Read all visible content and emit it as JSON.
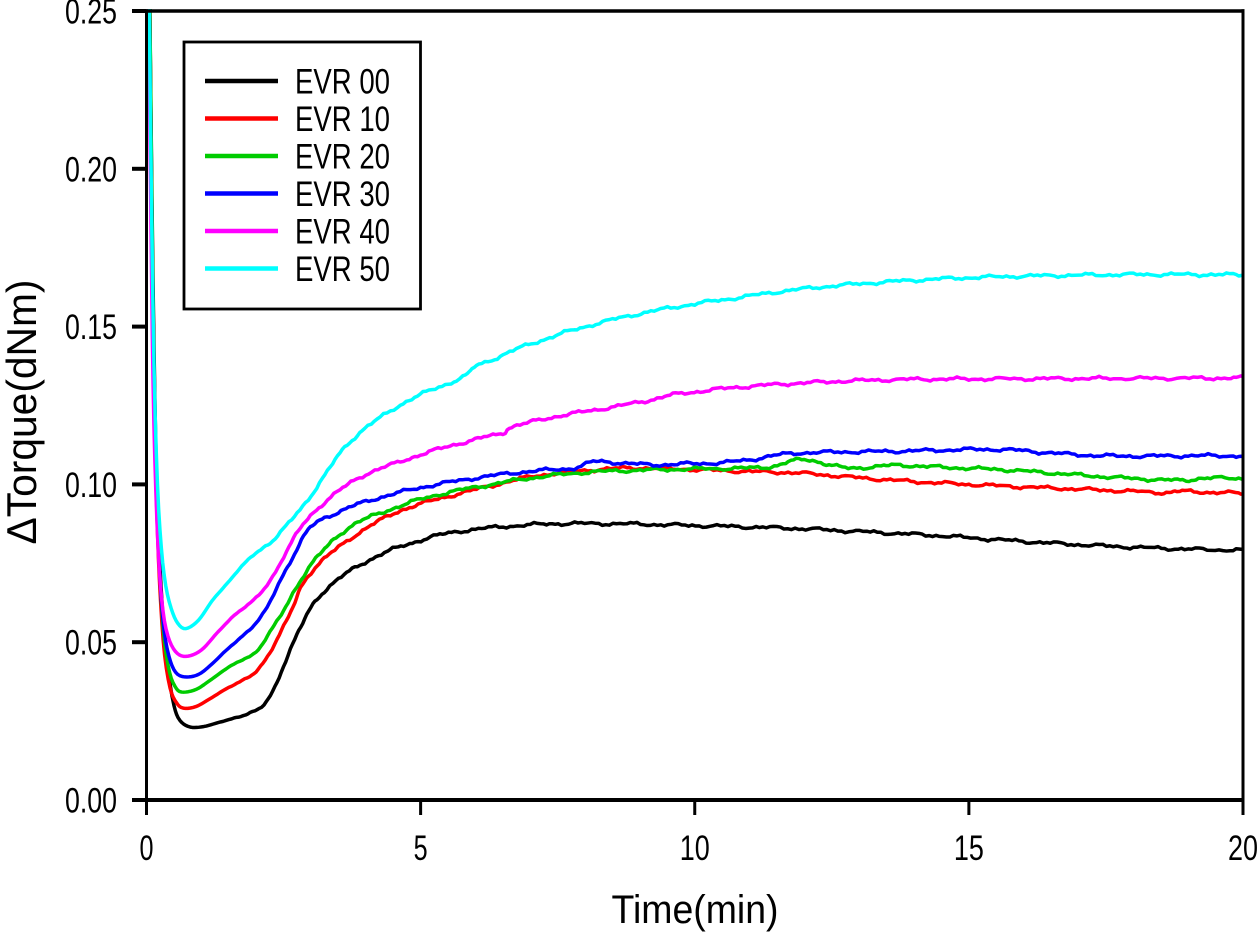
{
  "figure": {
    "background": "#ffffff",
    "frame_color": "#000000"
  },
  "chart_data": {
    "type": "line",
    "title": "",
    "xlabel": "Time(min)",
    "ylabel": "ΔTorque(dNm)",
    "xlim": [
      0,
      20
    ],
    "ylim": [
      0,
      0.25
    ],
    "xticks": [
      0,
      5,
      10,
      15,
      20
    ],
    "xtick_labels": [
      "0",
      "5",
      "10",
      "15",
      "20"
    ],
    "yticks": [
      0,
      0.05,
      0.1,
      0.15,
      0.2,
      0.25
    ],
    "ytick_labels": [
      "0.00",
      "0.05",
      "0.10",
      "0.15",
      "0.20",
      "0.25"
    ],
    "grid": false,
    "legend_position": "top-left-inside",
    "series": [
      {
        "name": "EVR 00",
        "color": "#000000",
        "points": [
          [
            0.06,
            0.252
          ],
          [
            0.1,
            0.19
          ],
          [
            0.14,
            0.14
          ],
          [
            0.18,
            0.105
          ],
          [
            0.24,
            0.076
          ],
          [
            0.31,
            0.056
          ],
          [
            0.4,
            0.0405
          ],
          [
            0.5,
            0.03
          ],
          [
            0.61,
            0.0252
          ],
          [
            0.8,
            0.0231
          ],
          [
            1.05,
            0.0233
          ],
          [
            1.3,
            0.0245
          ],
          [
            1.6,
            0.026
          ],
          [
            1.85,
            0.0272
          ],
          [
            2.1,
            0.0295
          ],
          [
            2.3,
            0.0345
          ],
          [
            2.5,
            0.0425
          ],
          [
            2.7,
            0.0505
          ],
          [
            2.85,
            0.056
          ],
          [
            3.0,
            0.061
          ],
          [
            3.2,
            0.0655
          ],
          [
            3.5,
            0.07
          ],
          [
            3.8,
            0.0735
          ],
          [
            4.08,
            0.0762
          ],
          [
            4.4,
            0.0788
          ],
          [
            4.8,
            0.0812
          ],
          [
            5.3,
            0.0838
          ],
          [
            6.0,
            0.0858
          ],
          [
            7.0,
            0.0872
          ],
          [
            7.7,
            0.0876
          ],
          [
            8.7,
            0.0875
          ],
          [
            9.7,
            0.0871
          ],
          [
            10.8,
            0.0866
          ],
          [
            11.9,
            0.086
          ],
          [
            13.2,
            0.0849
          ],
          [
            14.4,
            0.0838
          ],
          [
            15.6,
            0.0824
          ],
          [
            16.8,
            0.0811
          ],
          [
            18.0,
            0.0801
          ],
          [
            19.0,
            0.0795
          ],
          [
            20,
            0.0791
          ]
        ]
      },
      {
        "name": "EVR 10",
        "color": "#ff0000",
        "points": [
          [
            0.06,
            0.252
          ],
          [
            0.1,
            0.18
          ],
          [
            0.14,
            0.125
          ],
          [
            0.2,
            0.085
          ],
          [
            0.26,
            0.062
          ],
          [
            0.33,
            0.046
          ],
          [
            0.43,
            0.0355
          ],
          [
            0.54,
            0.031
          ],
          [
            0.67,
            0.0291
          ],
          [
            0.9,
            0.0296
          ],
          [
            1.15,
            0.032
          ],
          [
            1.45,
            0.0352
          ],
          [
            1.75,
            0.0378
          ],
          [
            2.0,
            0.0408
          ],
          [
            2.25,
            0.0468
          ],
          [
            2.5,
            0.0548
          ],
          [
            2.67,
            0.061
          ],
          [
            2.81,
            0.0672
          ],
          [
            3.0,
            0.0722
          ],
          [
            3.2,
            0.0758
          ],
          [
            3.5,
            0.08
          ],
          [
            3.99,
            0.086
          ],
          [
            4.4,
            0.0898
          ],
          [
            4.8,
            0.0928
          ],
          [
            5.5,
            0.0962
          ],
          [
            6.2,
            0.0992
          ],
          [
            7.0,
            0.1024
          ],
          [
            7.8,
            0.1041
          ],
          [
            8.5,
            0.105
          ],
          [
            9.0,
            0.1052
          ],
          [
            9.8,
            0.1048
          ],
          [
            10.8,
            0.1042
          ],
          [
            11.9,
            0.1036
          ],
          [
            13.0,
            0.1021
          ],
          [
            14.0,
            0.1009
          ],
          [
            15.0,
            0.1
          ],
          [
            16.0,
            0.0992
          ],
          [
            17.0,
            0.0985
          ],
          [
            18.0,
            0.0978
          ],
          [
            18.6,
            0.0974
          ],
          [
            18.85,
            0.0978
          ],
          [
            19.4,
            0.0975
          ],
          [
            20,
            0.0972
          ]
        ]
      },
      {
        "name": "EVR 20",
        "color": "#00cc00",
        "points": [
          [
            0.06,
            0.252
          ],
          [
            0.1,
            0.185
          ],
          [
            0.14,
            0.13
          ],
          [
            0.2,
            0.09
          ],
          [
            0.26,
            0.066
          ],
          [
            0.33,
            0.05
          ],
          [
            0.42,
            0.0405
          ],
          [
            0.52,
            0.036
          ],
          [
            0.64,
            0.0342
          ],
          [
            0.9,
            0.035
          ],
          [
            1.15,
            0.0378
          ],
          [
            1.45,
            0.0415
          ],
          [
            1.75,
            0.0445
          ],
          [
            2.0,
            0.047
          ],
          [
            2.25,
            0.053
          ],
          [
            2.5,
            0.06
          ],
          [
            2.75,
            0.068
          ],
          [
            3.0,
            0.0745
          ],
          [
            3.25,
            0.0795
          ],
          [
            3.5,
            0.0838
          ],
          [
            3.8,
            0.0875
          ],
          [
            4.1,
            0.0898
          ],
          [
            4.5,
            0.0924
          ],
          [
            5.0,
            0.0953
          ],
          [
            5.6,
            0.0978
          ],
          [
            6.3,
            0.1
          ],
          [
            7.0,
            0.102
          ],
          [
            8.0,
            0.1038
          ],
          [
            9.0,
            0.1045
          ],
          [
            10.0,
            0.1049
          ],
          [
            11.0,
            0.1052
          ],
          [
            11.45,
            0.1058
          ],
          [
            11.8,
            0.1075
          ],
          [
            12.1,
            0.1078
          ],
          [
            12.45,
            0.1062
          ],
          [
            12.8,
            0.1052
          ],
          [
            13.3,
            0.1056
          ],
          [
            13.7,
            0.1061
          ],
          [
            14.3,
            0.1056
          ],
          [
            15.0,
            0.1051
          ],
          [
            15.6,
            0.1047
          ],
          [
            16.5,
            0.1036
          ],
          [
            17.4,
            0.1025
          ],
          [
            18.2,
            0.1017
          ],
          [
            18.9,
            0.1013
          ],
          [
            19.3,
            0.102
          ],
          [
            20,
            0.1019
          ]
        ]
      },
      {
        "name": "EVR 30",
        "color": "#0000ff",
        "points": [
          [
            0.05,
            0.252
          ],
          [
            0.09,
            0.185
          ],
          [
            0.13,
            0.132
          ],
          [
            0.19,
            0.093
          ],
          [
            0.25,
            0.069
          ],
          [
            0.32,
            0.054
          ],
          [
            0.41,
            0.0455
          ],
          [
            0.53,
            0.0405
          ],
          [
            0.7,
            0.039
          ],
          [
            0.95,
            0.0398
          ],
          [
            1.2,
            0.0432
          ],
          [
            1.5,
            0.0482
          ],
          [
            1.75,
            0.052
          ],
          [
            2.0,
            0.056
          ],
          [
            2.2,
            0.061
          ],
          [
            2.45,
            0.07
          ],
          [
            2.7,
            0.078
          ],
          [
            2.95,
            0.0855
          ],
          [
            3.2,
            0.089
          ],
          [
            3.5,
            0.0912
          ],
          [
            3.9,
            0.094
          ],
          [
            4.4,
            0.0965
          ],
          [
            5.0,
            0.099
          ],
          [
            5.7,
            0.1012
          ],
          [
            6.4,
            0.103
          ],
          [
            7.1,
            0.1043
          ],
          [
            7.8,
            0.1052
          ],
          [
            8.15,
            0.1072
          ],
          [
            8.5,
            0.107
          ],
          [
            8.8,
            0.1066
          ],
          [
            9.3,
            0.1062
          ],
          [
            9.8,
            0.1065
          ],
          [
            10.4,
            0.1068
          ],
          [
            11.0,
            0.1078
          ],
          [
            11.5,
            0.1093
          ],
          [
            12.0,
            0.11
          ],
          [
            12.8,
            0.1103
          ],
          [
            13.6,
            0.1105
          ],
          [
            14.4,
            0.1108
          ],
          [
            15.2,
            0.1111
          ],
          [
            15.8,
            0.1109
          ],
          [
            16.4,
            0.1101
          ],
          [
            17.1,
            0.1093
          ],
          [
            17.7,
            0.109
          ],
          [
            18.5,
            0.109
          ],
          [
            19.3,
            0.1091
          ],
          [
            20,
            0.109
          ]
        ]
      },
      {
        "name": "EVR 40",
        "color": "#ff00ff",
        "points": [
          [
            0.04,
            0.252
          ],
          [
            0.08,
            0.185
          ],
          [
            0.12,
            0.132
          ],
          [
            0.17,
            0.098
          ],
          [
            0.23,
            0.074
          ],
          [
            0.3,
            0.06
          ],
          [
            0.39,
            0.052
          ],
          [
            0.53,
            0.047
          ],
          [
            0.72,
            0.0455
          ],
          [
            1.0,
            0.0475
          ],
          [
            1.3,
            0.0532
          ],
          [
            1.6,
            0.0585
          ],
          [
            1.95,
            0.0632
          ],
          [
            2.25,
            0.0695
          ],
          [
            2.55,
            0.0785
          ],
          [
            2.81,
            0.0862
          ],
          [
            3.1,
            0.092
          ],
          [
            3.53,
            0.0982
          ],
          [
            4.0,
            0.1032
          ],
          [
            4.63,
            0.1072
          ],
          [
            5.1,
            0.11
          ],
          [
            5.65,
            0.1127
          ],
          [
            6.1,
            0.1147
          ],
          [
            6.5,
            0.1163
          ],
          [
            6.62,
            0.118
          ],
          [
            7.0,
            0.1197
          ],
          [
            7.5,
            0.1216
          ],
          [
            8.0,
            0.1231
          ],
          [
            8.6,
            0.1248
          ],
          [
            9.2,
            0.1268
          ],
          [
            9.6,
            0.1284
          ],
          [
            10.1,
            0.1295
          ],
          [
            10.6,
            0.1305
          ],
          [
            11.1,
            0.1312
          ],
          [
            11.7,
            0.1319
          ],
          [
            12.3,
            0.1324
          ],
          [
            13.0,
            0.1329
          ],
          [
            14.0,
            0.1333
          ],
          [
            15.0,
            0.1334
          ],
          [
            16.5,
            0.1335
          ],
          [
            18.0,
            0.1336
          ],
          [
            20,
            0.1337
          ]
        ]
      },
      {
        "name": "EVR 50",
        "color": "#00ffff",
        "points": [
          [
            0.05,
            0.252
          ],
          [
            0.09,
            0.19
          ],
          [
            0.14,
            0.135
          ],
          [
            0.2,
            0.1
          ],
          [
            0.27,
            0.08
          ],
          [
            0.35,
            0.068
          ],
          [
            0.45,
            0.0607
          ],
          [
            0.57,
            0.056
          ],
          [
            0.72,
            0.0543
          ],
          [
            0.95,
            0.057
          ],
          [
            1.2,
            0.0632
          ],
          [
            1.4,
            0.0672
          ],
          [
            1.65,
            0.0722
          ],
          [
            1.9,
            0.077
          ],
          [
            2.13,
            0.08
          ],
          [
            2.35,
            0.0828
          ],
          [
            2.65,
            0.089
          ],
          [
            3.0,
            0.0965
          ],
          [
            3.3,
            0.104
          ],
          [
            3.53,
            0.11
          ],
          [
            3.8,
            0.115
          ],
          [
            4.1,
            0.1192
          ],
          [
            4.63,
            0.1252
          ],
          [
            5.1,
            0.1292
          ],
          [
            5.65,
            0.133
          ],
          [
            5.88,
            0.1352
          ],
          [
            5.98,
            0.1372
          ],
          [
            6.3,
            0.1395
          ],
          [
            6.8,
            0.1432
          ],
          [
            7.3,
            0.1462
          ],
          [
            7.8,
            0.149
          ],
          [
            8.5,
            0.1522
          ],
          [
            9.2,
            0.1548
          ],
          [
            10.0,
            0.1572
          ],
          [
            10.8,
            0.1592
          ],
          [
            11.6,
            0.1612
          ],
          [
            12.4,
            0.1627
          ],
          [
            13.2,
            0.1638
          ],
          [
            14.1,
            0.1648
          ],
          [
            15.0,
            0.1655
          ],
          [
            16.0,
            0.166
          ],
          [
            17.0,
            0.1663
          ],
          [
            18.0,
            0.1665
          ],
          [
            19.0,
            0.1665
          ],
          [
            20,
            0.1664
          ]
        ]
      }
    ]
  }
}
